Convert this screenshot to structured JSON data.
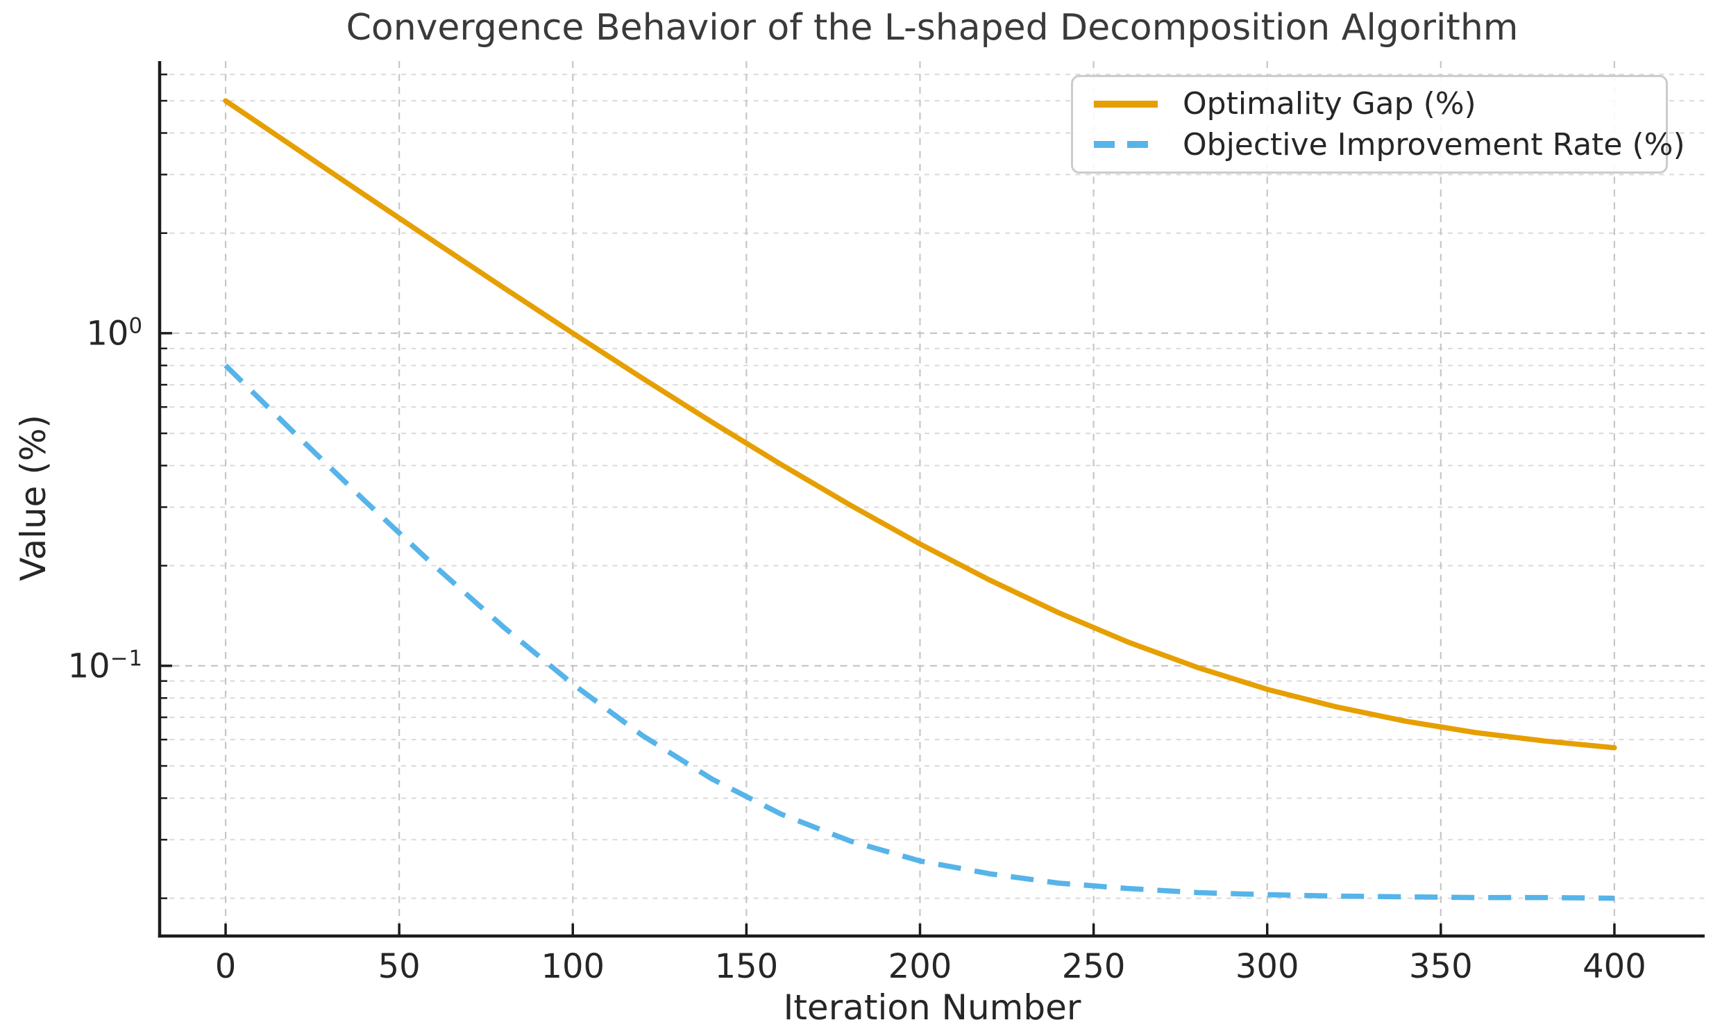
{
  "chart_data": {
    "type": "line",
    "title": "Convergence Behavior of the L-shaped Decomposition Algorithm",
    "xlabel": "Iteration Number",
    "ylabel": "Value (%)",
    "grid": true,
    "grid_style": "dashed",
    "y_scale": "log",
    "xlim": [
      -19,
      426
    ],
    "ylim": [
      0.0154,
      6.58
    ],
    "x_ticks": [
      0,
      50,
      100,
      150,
      200,
      250,
      300,
      350,
      400
    ],
    "y_major_ticks": [
      {
        "value": 1,
        "base": "10",
        "exp": "0"
      },
      {
        "value": 0.1,
        "base": "10",
        "exp": "−1"
      }
    ],
    "legend_position": "upper right",
    "x": [
      0,
      20,
      40,
      60,
      80,
      100,
      120,
      140,
      160,
      180,
      200,
      220,
      240,
      260,
      280,
      300,
      320,
      340,
      360,
      380,
      400
    ],
    "series": [
      {
        "name": "Optimality Gap (%)",
        "color": "#E69F00",
        "style": "solid",
        "values": [
          5.0,
          3.609,
          2.608,
          1.889,
          1.372,
          1.0,
          0.733,
          0.541,
          0.403,
          0.304,
          0.2325,
          0.1812,
          0.1443,
          0.1178,
          0.0988,
          0.085,
          0.0752,
          0.0681,
          0.063,
          0.0594,
          0.0567
        ]
      },
      {
        "name": "Objective Improvement Rate (%)",
        "color": "#56B4E9",
        "style": "dashed",
        "values": [
          0.8,
          0.4989,
          0.314,
          0.2005,
          0.1309,
          0.0881,
          0.0618,
          0.0457,
          0.0358,
          0.0297,
          0.0259,
          0.0237,
          0.0222,
          0.0214,
          0.0208,
          0.0205,
          0.0203,
          0.0202,
          0.0201,
          0.0201,
          0.02
        ]
      }
    ],
    "colors": {
      "spine": "#1c1c1c",
      "tick": "#1c1c1c",
      "grid_major": "#c6c6c6",
      "grid_minor": "#dadada",
      "text": "#262626",
      "title_text": "#3a3a3a",
      "legend_border": "#cccccc"
    }
  }
}
